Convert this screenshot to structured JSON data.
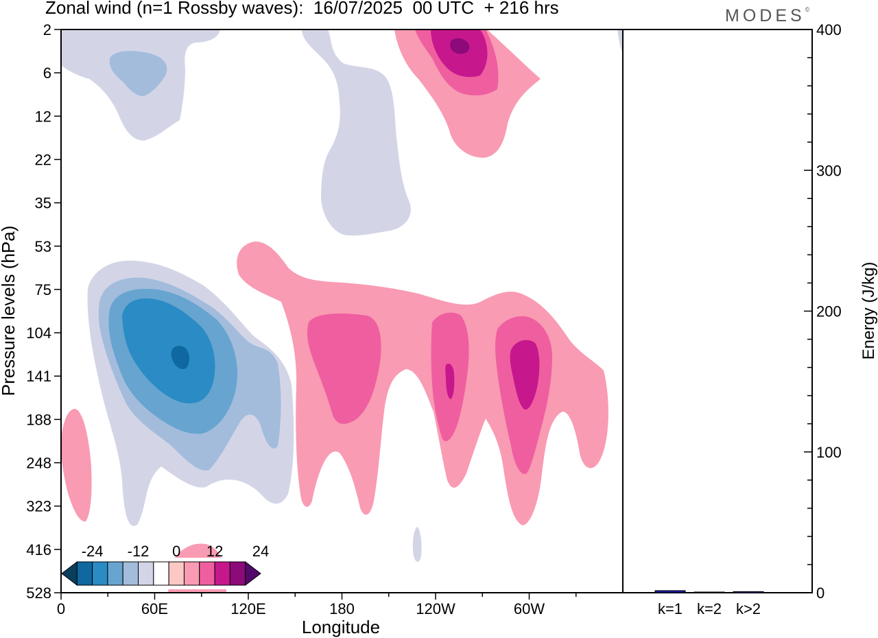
{
  "header": {
    "title": "Zonal wind (n=1 Rossby waves):  16/07/2025  00 UTC  + 216 hrs",
    "brand": "MODES",
    "brand_mark": "©"
  },
  "chart_data": [
    {
      "type": "heatmap",
      "title": "Zonal wind (n=1 Rossby waves):  16/07/2025  00 UTC  + 216 hrs",
      "xlabel": "Longitude",
      "ylabel": "Pressure levels (hPa)",
      "x_ticks": [
        "0",
        "60E",
        "120E",
        "180",
        "120W",
        "60W"
      ],
      "x_tick_degrees": [
        0,
        60,
        120,
        180,
        240,
        300
      ],
      "xlim": [
        0,
        360
      ],
      "y_ticks": [
        "2",
        "6",
        "12",
        "22",
        "35",
        "53",
        "75",
        "104",
        "141",
        "188",
        "248",
        "323",
        "416",
        "528"
      ],
      "y_scale": "model levels (non-linear pressure)",
      "colorbar": {
        "tick_labels": [
          "-24",
          "-12",
          "0",
          "12",
          "24"
        ],
        "tick_values": [
          -24,
          -12,
          0,
          12,
          24
        ],
        "levels": [
          -28,
          -24,
          -20,
          -16,
          -12,
          -8,
          -4,
          4,
          8,
          12,
          16,
          20,
          24,
          28
        ],
        "colors": [
          "#0a3f5c",
          "#0f68a0",
          "#2b8bc4",
          "#67a4d0",
          "#a3bcdc",
          "#d3d5e7",
          "#ffffff",
          "#fbc8c4",
          "#f99bb3",
          "#ef5fa0",
          "#c7178d",
          "#8c0a7a",
          "#520a6a"
        ]
      },
      "features": [
        {
          "sign": "negative",
          "center_lon": 77,
          "center_level": "118",
          "min": -28,
          "extent_lon": [
            15,
            145
          ],
          "extent_levels": [
            "60",
            "350"
          ]
        },
        {
          "sign": "negative",
          "center_lon": 28,
          "center_level": "5",
          "min": -12,
          "extent_lon": [
            0,
            70
          ],
          "extent_levels": [
            "2",
            "16"
          ]
        },
        {
          "sign": "negative",
          "center_lon": 195,
          "center_level": "22",
          "min": -4,
          "extent_lon": [
            165,
            240
          ],
          "extent_levels": [
            "2",
            "50"
          ]
        },
        {
          "sign": "positive",
          "center_lon": 262,
          "center_level": "3",
          "max": 20,
          "extent_lon": [
            218,
            310
          ],
          "extent_levels": [
            "2",
            "20"
          ]
        },
        {
          "sign": "positive",
          "center_lon": 188,
          "center_level": "135",
          "max": 8,
          "extent_lon": [
            150,
            215
          ],
          "extent_levels": [
            "60",
            "300"
          ]
        },
        {
          "sign": "positive",
          "center_lon": 251,
          "center_level": "150",
          "max": 12,
          "extent_lon": [
            230,
            265
          ],
          "extent_levels": [
            "90",
            "280"
          ]
        },
        {
          "sign": "positive",
          "center_lon": 298,
          "center_level": "135",
          "max": 12,
          "extent_lon": [
            270,
            330
          ],
          "extent_levels": [
            "80",
            "330"
          ]
        },
        {
          "sign": "positive",
          "center_lon": 10,
          "center_level": "248",
          "max": 4,
          "extent_lon": [
            0,
            20
          ],
          "extent_levels": [
            "188",
            "330"
          ]
        }
      ]
    },
    {
      "type": "bar",
      "categories": [
        "k=1",
        "k=2",
        "k>2"
      ],
      "values": [
        1.5,
        0.5,
        0.8
      ],
      "ylabel": "Energy (J/kg)",
      "ylim": [
        0,
        400
      ],
      "y_ticks": [
        0,
        100,
        200,
        300,
        400
      ],
      "bar_color": "#1a1aa8"
    }
  ]
}
